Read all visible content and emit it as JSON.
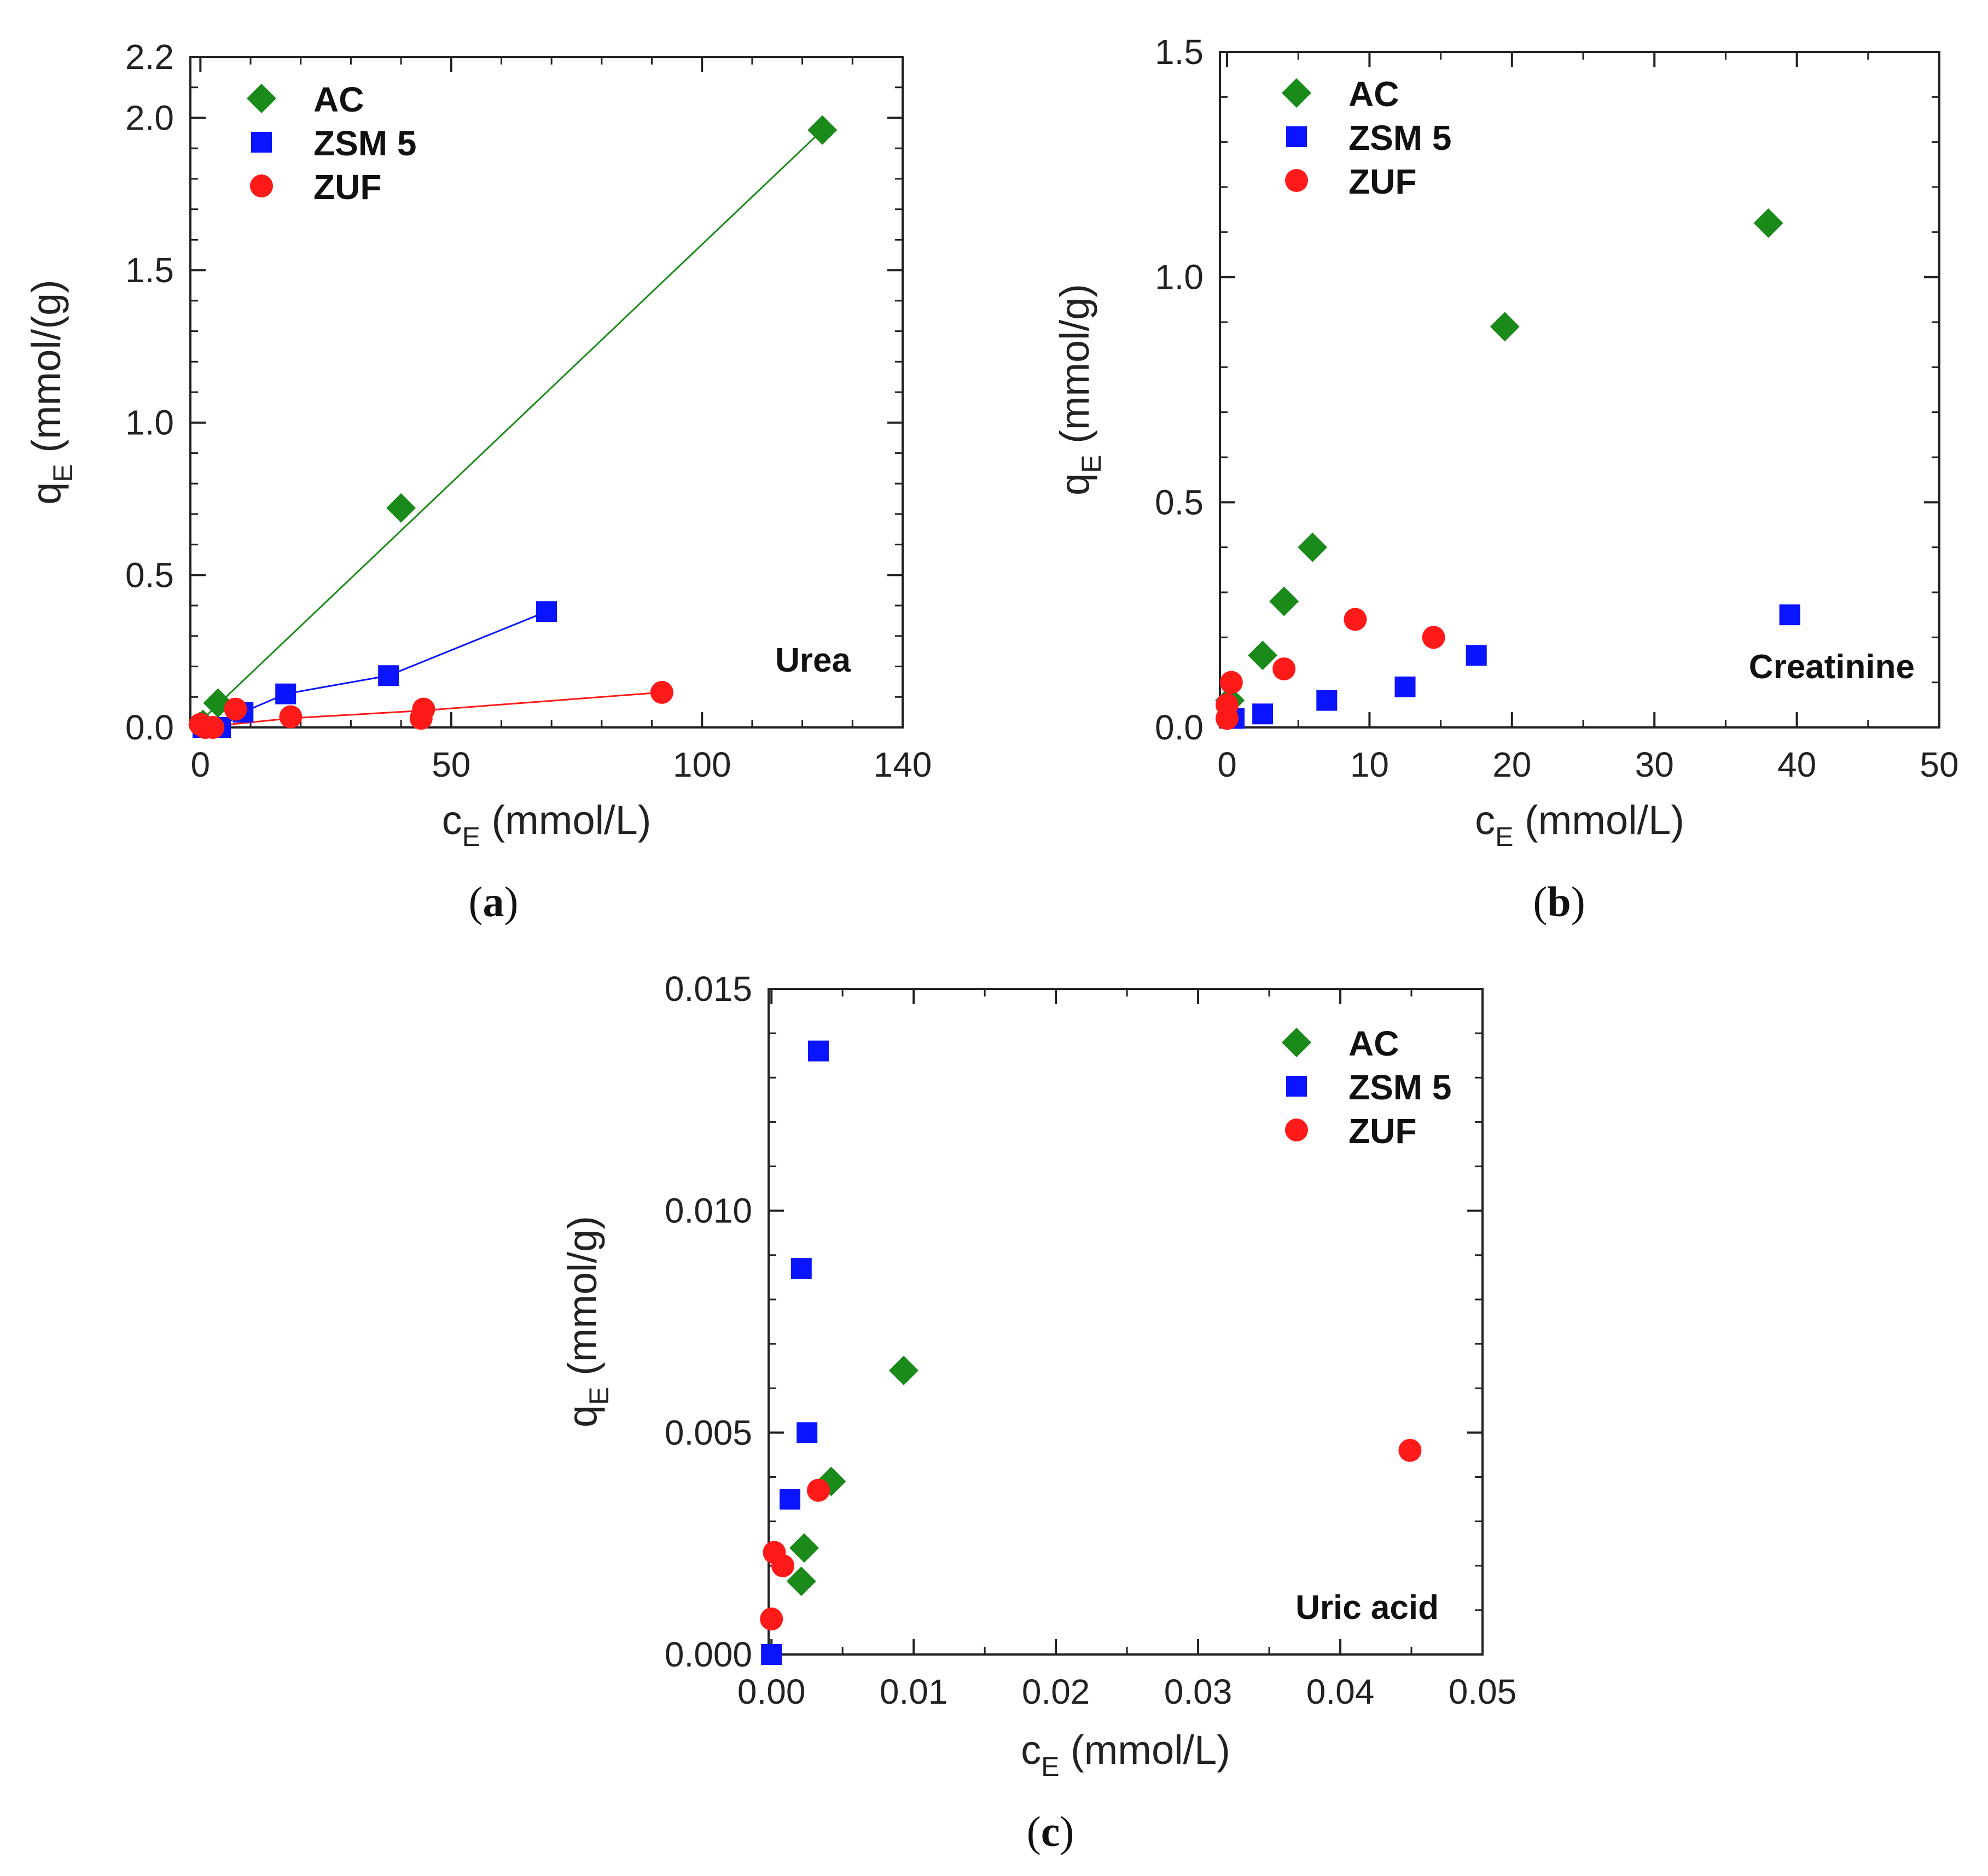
{
  "figure": {
    "colors": {
      "AC": "#1a8a1a",
      "ZSM 5": "#0a14ff",
      "ZUF": "#ff1a1a",
      "axis": "#222222"
    }
  },
  "chart_data": [
    {
      "type": "scatter",
      "panel_label": "a",
      "annotation": "Urea",
      "xlabel": "c",
      "xlabel_sub": "E",
      "xlabel_unit": " (mmol/L)",
      "ylabel": "q",
      "ylabel_sub": "E",
      "ylabel_unit": " (mmol/(g)",
      "xlim": [
        -2,
        140
      ],
      "ylim": [
        0,
        2.2
      ],
      "xticks": [
        0,
        50,
        100,
        140
      ],
      "yticks": [
        0.0,
        0.5,
        1.0,
        1.5,
        2.0,
        2.2
      ],
      "ytick_labels": [
        "0.0",
        "0.5",
        "1.0",
        "1.5",
        "2.0",
        "2.2"
      ],
      "xtick_labels": [
        "0",
        "50",
        "100",
        "140"
      ],
      "minor_x_step": 10,
      "minor_y_step": 0.1,
      "legend_position": "top-left",
      "series": [
        {
          "name": "AC",
          "marker": "diamond",
          "x": [
            0.5,
            3.5,
            40,
            124
          ],
          "y": [
            0.01,
            0.08,
            0.72,
            1.96
          ]
        },
        {
          "name": "ZSM 5",
          "marker": "square",
          "x": [
            0.5,
            2,
            4,
            8.5,
            17,
            37.5,
            69
          ],
          "y": [
            0.0,
            0.0,
            0.0,
            0.05,
            0.11,
            0.17,
            0.38
          ]
        },
        {
          "name": "ZUF",
          "marker": "circle",
          "x": [
            0,
            1,
            2.5,
            7,
            18,
            44,
            44.5,
            92
          ],
          "y": [
            0.01,
            0.0,
            0.0,
            0.06,
            0.035,
            0.03,
            0.06,
            0.115
          ]
        }
      ],
      "fit_lines": [
        {
          "series": "AC",
          "x": [
            0,
            124
          ],
          "y": [
            0.02,
            1.96
          ]
        },
        {
          "series": "ZSM 5",
          "x": [
            0,
            4,
            8.5,
            17,
            37.5,
            69
          ],
          "y": [
            0.0,
            0.0,
            0.05,
            0.11,
            0.17,
            0.38
          ]
        },
        {
          "series": "ZUF",
          "x": [
            0,
            18,
            44,
            92
          ],
          "y": [
            0.0,
            0.03,
            0.055,
            0.115
          ]
        }
      ]
    },
    {
      "type": "scatter",
      "panel_label": "b",
      "annotation": "Creatinine",
      "xlabel": "c",
      "xlabel_sub": "E",
      "xlabel_unit": " (mmol/L)",
      "ylabel": "q",
      "ylabel_sub": "E",
      "ylabel_unit": " (mmol/g)",
      "xlim": [
        -0.5,
        50
      ],
      "ylim": [
        0,
        1.5
      ],
      "xticks": [
        0,
        10,
        20,
        30,
        40,
        50
      ],
      "yticks": [
        0.0,
        0.5,
        1.0,
        1.5
      ],
      "ytick_labels": [
        "0.0",
        "0.5",
        "1.0",
        "1.5"
      ],
      "xtick_labels": [
        "0",
        "10",
        "20",
        "30",
        "40",
        "50"
      ],
      "minor_x_step": 5,
      "minor_y_step": 0.1,
      "legend_position": "top-left",
      "series": [
        {
          "name": "AC",
          "marker": "diamond",
          "x": [
            0.2,
            2.5,
            4,
            6,
            19.5,
            38
          ],
          "y": [
            0.06,
            0.16,
            0.28,
            0.4,
            0.89,
            1.12
          ]
        },
        {
          "name": "ZSM 5",
          "marker": "square",
          "x": [
            0.5,
            2.5,
            7,
            12.5,
            17.5,
            39.5
          ],
          "y": [
            0.02,
            0.03,
            0.06,
            0.09,
            0.16,
            0.25
          ]
        },
        {
          "name": "ZUF",
          "marker": "circle",
          "x": [
            0,
            0,
            0.3,
            4,
            9,
            14.5
          ],
          "y": [
            0.02,
            0.05,
            0.1,
            0.13,
            0.24,
            0.2
          ]
        }
      ]
    },
    {
      "type": "scatter",
      "panel_label": "c",
      "annotation": "Uric acid",
      "xlabel": "c",
      "xlabel_sub": "E",
      "xlabel_unit": " (mmol/L)",
      "ylabel": "q",
      "ylabel_sub": "E",
      "ylabel_unit": " (mmol/g)",
      "xlim": [
        -0.0002,
        0.05
      ],
      "ylim": [
        0,
        0.015
      ],
      "xticks": [
        0.0,
        0.01,
        0.02,
        0.03,
        0.04,
        0.05
      ],
      "yticks": [
        0.0,
        0.005,
        0.01,
        0.015
      ],
      "ytick_labels": [
        "0.000",
        "0.005",
        "0.010",
        "0.015"
      ],
      "xtick_labels": [
        "0.00",
        "0.01",
        "0.02",
        "0.03",
        "0.04",
        "0.05"
      ],
      "minor_x_step": 0.005,
      "minor_y_step": 0.001,
      "legend_position": "top-right",
      "series": [
        {
          "name": "AC",
          "marker": "diamond",
          "x": [
            0.0021,
            0.0023,
            0.0042,
            0.0093
          ],
          "y": [
            0.00165,
            0.0024,
            0.0039,
            0.0064
          ]
        },
        {
          "name": "ZSM 5",
          "marker": "square",
          "x": [
            0.0,
            0.0013,
            0.0021,
            0.0025,
            0.0033
          ],
          "y": [
            0.0,
            0.0035,
            0.0087,
            0.005,
            0.0136
          ]
        },
        {
          "name": "ZUF",
          "marker": "circle",
          "x": [
            0.0,
            0.0002,
            0.0008,
            0.0033,
            0.0449
          ],
          "y": [
            0.0008,
            0.0023,
            0.002,
            0.0037,
            0.0046
          ]
        }
      ]
    }
  ]
}
